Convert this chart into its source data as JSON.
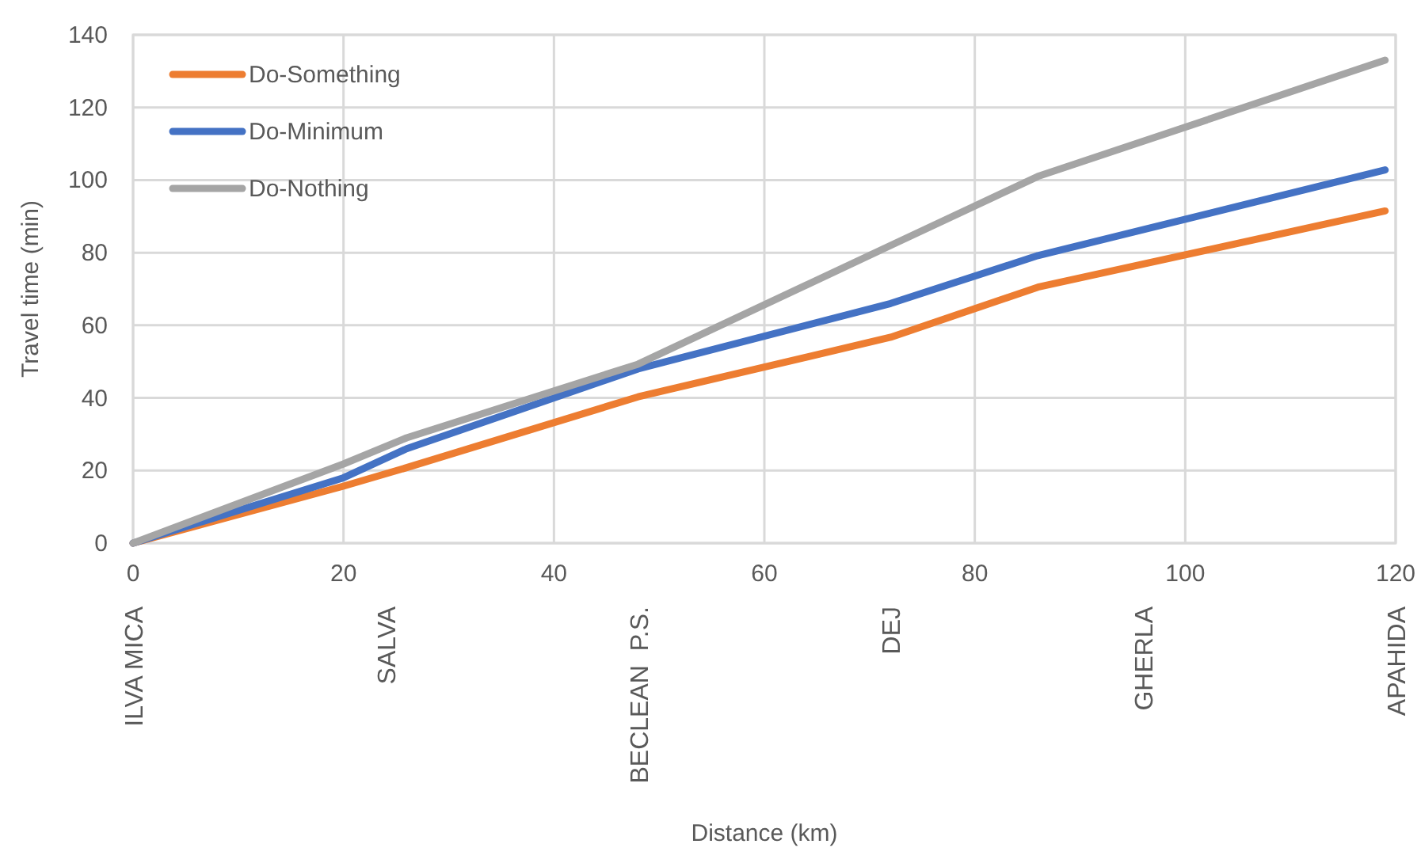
{
  "chart_data": {
    "type": "line",
    "ylabel": "Travel time (min)",
    "x": [
      0,
      20,
      26,
      48,
      72,
      86,
      119
    ],
    "series": [
      {
        "name": "Do-Something",
        "color": "#ed7d31",
        "values": [
          0,
          15.7,
          20.8,
          40.3,
          56.7,
          70.5,
          91.5
        ]
      },
      {
        "name": "Do-Minimum",
        "color": "#4472c4",
        "values": [
          0,
          18,
          26,
          48,
          66,
          79.2,
          102.8
        ]
      },
      {
        "name": "Do-Nothing",
        "color": "#a5a5a5",
        "values": [
          0,
          21.8,
          29,
          49.3,
          82,
          101,
          133
        ]
      }
    ],
    "xlim": [
      0,
      120
    ],
    "xticks": [
      0,
      20,
      40,
      60,
      80,
      100,
      120
    ],
    "ylim": [
      0,
      140
    ],
    "yticks": [
      0,
      20,
      40,
      60,
      80,
      100,
      120,
      140
    ],
    "grid": true,
    "legend": "top left",
    "marker": "none",
    "line_style": "solid",
    "annotations": [
      "ILVA MICA",
      "SALVA",
      "BECLEAN  P.S.",
      "DEJ",
      "GHERLA",
      "APAHIDA",
      "Distance (km)"
    ]
  }
}
